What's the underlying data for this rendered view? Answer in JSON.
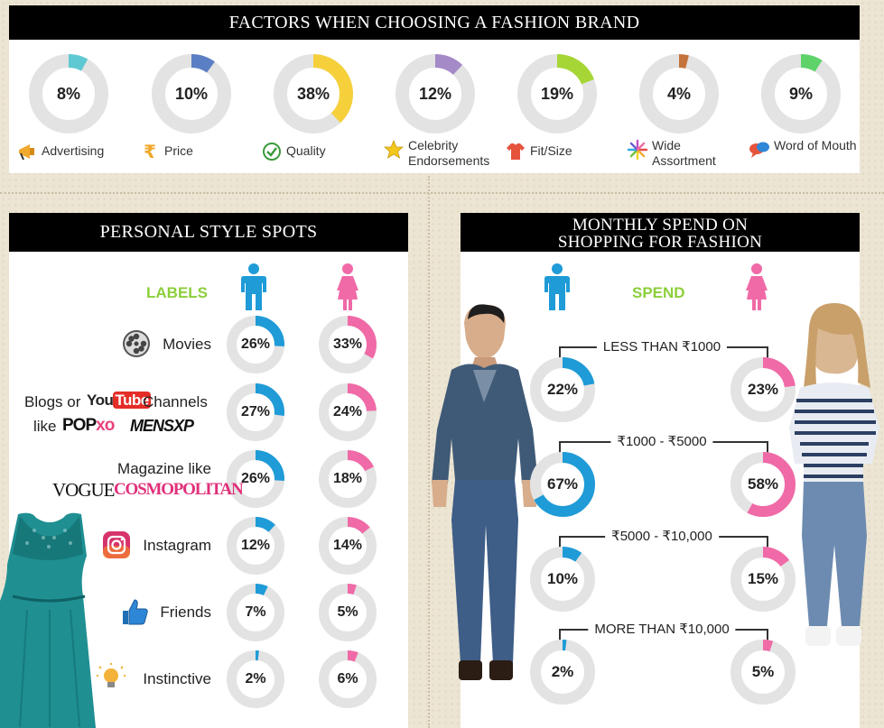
{
  "factors": {
    "title": "FACTORS WHEN CHOOSING A FASHION BRAND",
    "items": [
      {
        "value": 8,
        "label": "8%",
        "name": "Advertising",
        "icon": "megaphone-icon",
        "color": "#5fc9d3"
      },
      {
        "value": 10,
        "label": "10%",
        "name": "Price",
        "icon": "rupee-icon",
        "color": "#5b7fc4"
      },
      {
        "value": 38,
        "label": "38%",
        "name": "Quality",
        "icon": "check-circle-icon",
        "color": "#f5d03b"
      },
      {
        "value": 12,
        "label": "12%",
        "name": "Celebrity Endorsements",
        "icon": "star-icon",
        "color": "#a58ac8"
      },
      {
        "value": 19,
        "label": "19%",
        "name": "Fit/Size",
        "icon": "tshirt-icon",
        "color": "#a6d636"
      },
      {
        "value": 4,
        "label": "4%",
        "name": "Wide Assortment",
        "icon": "sparkle-icon",
        "color": "#c4733a"
      },
      {
        "value": 9,
        "label": "9%",
        "name": "Word of Mouth",
        "icon": "speech-bubbles-icon",
        "color": "#5fd36a"
      }
    ]
  },
  "style_spots": {
    "title": "PERSONAL STYLE SPOTS",
    "labels_header": "LABELS",
    "male_color": "#1f9bd7",
    "female_color": "#f06aa7",
    "rows": [
      {
        "label": "Movies",
        "icon": "film-reel-icon",
        "male": 26,
        "male_label": "26%",
        "female": 33,
        "female_label": "33%"
      },
      {
        "label": "Blogs or",
        "brand": "YouTube",
        "label_tail": "Channels",
        "line2": "like",
        "brand2": "POPxo",
        "brand3": "MENSXP",
        "icon": "",
        "male": 27,
        "male_label": "27%",
        "female": 24,
        "female_label": "24%"
      },
      {
        "label": "Magazine like",
        "brand": "VOGUE",
        "brand2": "COSMOPOLITAN",
        "icon": "",
        "male": 26,
        "male_label": "26%",
        "female": 18,
        "female_label": "18%"
      },
      {
        "label": "Instagram",
        "icon": "instagram-icon",
        "male": 12,
        "male_label": "12%",
        "female": 14,
        "female_label": "14%"
      },
      {
        "label": "Friends",
        "icon": "thumbs-up-icon",
        "male": 7,
        "male_label": "7%",
        "female": 5,
        "female_label": "5%"
      },
      {
        "label": "Instinctive",
        "icon": "lightbulb-icon",
        "male": 2,
        "male_label": "2%",
        "female": 6,
        "female_label": "6%"
      }
    ]
  },
  "spend": {
    "title_line1": "MONTHLY SPEND ON",
    "title_line2": "SHOPPING FOR FASHION",
    "spend_header": "SPEND",
    "ranges": [
      {
        "label": "LESS THAN ₹1000",
        "male": 22,
        "male_label": "22%",
        "female": 23,
        "female_label": "23%"
      },
      {
        "label": "₹1000 - ₹5000",
        "male": 67,
        "male_label": "67%",
        "female": 58,
        "female_label": "58%"
      },
      {
        "label": "₹5000 - ₹10,000",
        "male": 10,
        "male_label": "10%",
        "female": 15,
        "female_label": "15%"
      },
      {
        "label": "MORE THAN ₹10,000",
        "male": 2,
        "male_label": "2%",
        "female": 5,
        "female_label": "5%"
      }
    ]
  }
}
